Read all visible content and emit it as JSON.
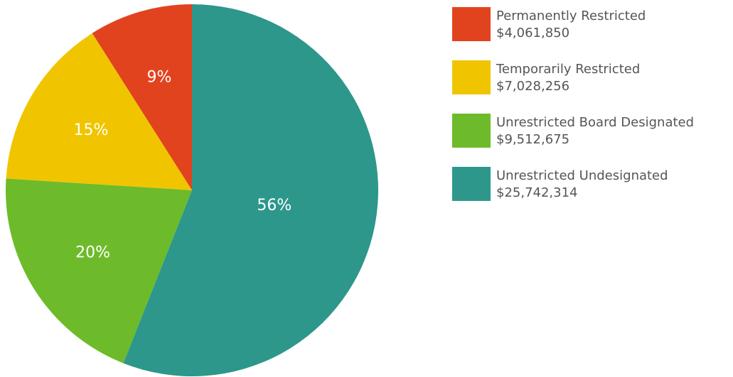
{
  "chart_data": {
    "type": "pie",
    "categories": [
      "Permanently Restricted",
      "Temporarily Restricted",
      "Unrestricted Board Designated",
      "Unrestricted Undesignated"
    ],
    "amounts": [
      "$4,061,850",
      "$7,028,256",
      "$9,512,675",
      "$25,742,314"
    ],
    "values": [
      9,
      15,
      20,
      56
    ],
    "value_labels": [
      "9%",
      "15%",
      "20%",
      "56%"
    ],
    "colors": [
      "#e2431f",
      "#f0c500",
      "#6dbb2a",
      "#2c978a"
    ],
    "legend": "right"
  }
}
